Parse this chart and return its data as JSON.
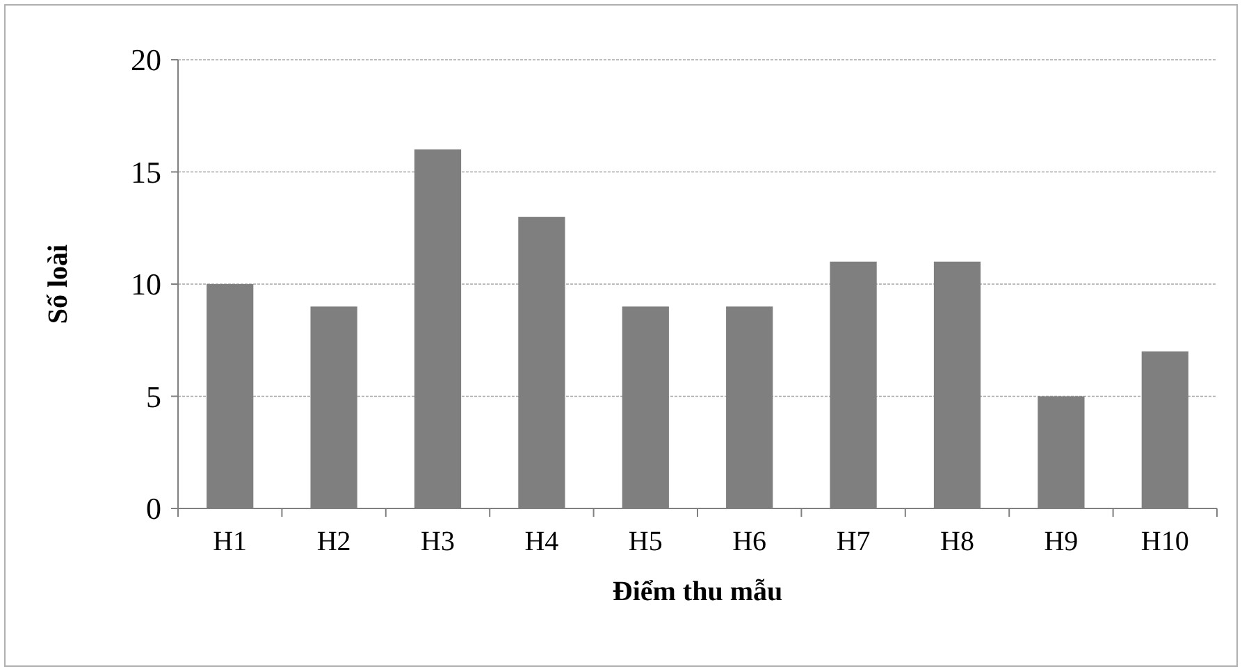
{
  "chart_data": {
    "type": "bar",
    "xlabel": "Điểm thu mẫu",
    "ylabel": "Số loài",
    "categories": [
      "H1",
      "H2",
      "H3",
      "H4",
      "H5",
      "H6",
      "H7",
      "H8",
      "H9",
      "H10"
    ],
    "values": [
      10,
      9,
      16,
      13,
      9,
      9,
      11,
      11,
      5,
      7
    ],
    "color": "#7f7f7f",
    "ylim": [
      0,
      20
    ],
    "yticks": [
      0,
      5,
      10,
      15,
      20
    ],
    "grid": "y"
  }
}
